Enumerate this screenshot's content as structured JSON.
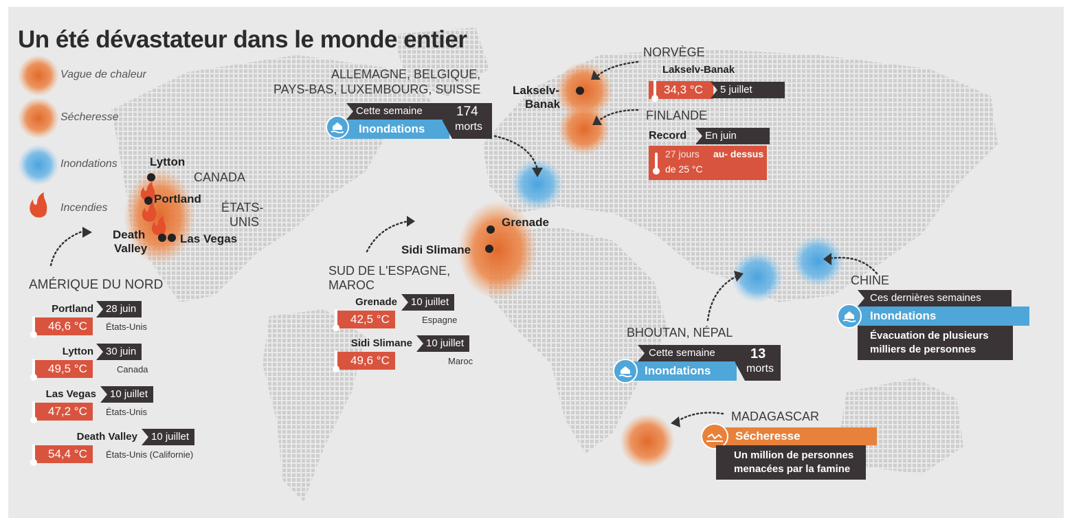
{
  "title": "Un été dévastateur dans le monde entier",
  "legend": {
    "heat": "Vague de chaleur",
    "drought": "Sécheresse",
    "flood": "Inondations",
    "fire": "Incendies"
  },
  "colors": {
    "heat": "#e8783e",
    "flood": "#4fa6d8",
    "dark": "#3a3436",
    "temp": "#d9543e",
    "drought": "#e8813a"
  },
  "map_labels": {
    "canada": "CANADA",
    "usa": "ÉTATS-UNIS",
    "usa_l1": "ÉTATS-",
    "usa_l2": "UNIS",
    "lytton": "Lytton",
    "portland": "Portland",
    "death_valley_1": "Death",
    "death_valley_2": "Valley",
    "las_vegas": "Las Vegas",
    "grenade": "Grenade",
    "sidi": "Sidi Slimane",
    "lakselv_1": "Lakselv-",
    "lakselv_2": "Banak"
  },
  "north_america": {
    "header": "AMÉRIQUE DU NORD",
    "rows": [
      {
        "city": "Portland",
        "date": "28 juin",
        "temp": "46,6 °C",
        "country": "États-Unis"
      },
      {
        "city": "Lytton",
        "date": "30 juin",
        "temp": "49,5 °C",
        "country": "Canada"
      },
      {
        "city": "Las Vegas",
        "date": "10 juillet",
        "temp": "47,2 °C",
        "country": "États-Unis"
      },
      {
        "city": "Death Valley",
        "date": "10 juillet",
        "temp": "54,4 °C",
        "country": "États-Unis (Californie)"
      }
    ]
  },
  "europe_flood": {
    "header_1": "ALLEMAGNE, BELGIQUE,",
    "header_2": "PAYS-BAS, LUXEMBOURG, SUISSE",
    "period": "Cette semaine",
    "type": "Inondations",
    "count": "174",
    "unit": "morts"
  },
  "spain": {
    "header_1": "SUD DE L'ESPAGNE,",
    "header_2": "MAROC",
    "rows": [
      {
        "city": "Grenade",
        "date": "10 juillet",
        "temp": "42,5 °C",
        "country": "Espagne"
      },
      {
        "city": "Sidi Slimane",
        "date": "10 juillet",
        "temp": "49,6 °C",
        "country": "Maroc"
      }
    ]
  },
  "norway": {
    "header": "NORVÈGE",
    "city": "Lakselv-Banak",
    "temp": "34,3 °C",
    "date": "5 juillet"
  },
  "finland": {
    "header": "FINLANDE",
    "label": "Record",
    "date": "En juin",
    "text_1": "27 jours",
    "text_2": "au-  dessus",
    "text_3": "de 25 °C"
  },
  "china": {
    "header": "CHINE",
    "period": "Ces dernières semaines",
    "type": "Inondations",
    "note_1": "Évacuation de plusieurs",
    "note_2": "milliers de personnes"
  },
  "bhutan": {
    "header": "BHOUTAN, NÉPAL",
    "period": "Cette semaine",
    "type": "Inondations",
    "count": "13",
    "unit": "morts"
  },
  "madagascar": {
    "header": "MADAGASCAR",
    "type": "Sécheresse",
    "note_1": "Un million de personnes",
    "note_2": "menacées par la famine"
  }
}
